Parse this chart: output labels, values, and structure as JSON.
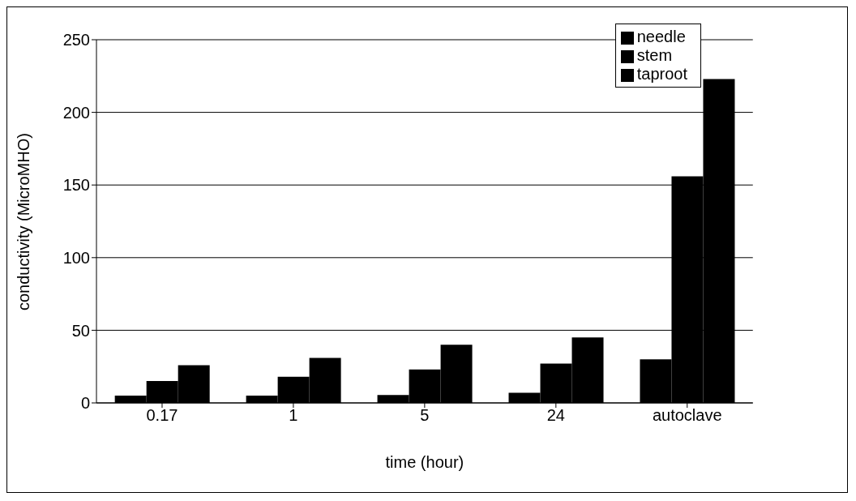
{
  "chart_data": {
    "type": "bar",
    "xlabel": "time (hour)",
    "ylabel": "conductivity (MicroMHO)",
    "categories": [
      "0.17",
      "1",
      "5",
      "24",
      "autoclave"
    ],
    "series": [
      {
        "name": "needle",
        "color": "#000000",
        "values": [
          5,
          5,
          5.5,
          7,
          30
        ]
      },
      {
        "name": "stem",
        "color": "#000000",
        "values": [
          15,
          18,
          23,
          27,
          156
        ]
      },
      {
        "name": "taproot",
        "color": "#000000",
        "values": [
          26,
          31,
          40,
          45,
          223
        ]
      }
    ],
    "ylim": [
      0,
      250
    ],
    "yticks": [
      0,
      50,
      100,
      150,
      200,
      250
    ],
    "grid": "y",
    "legend": "top right"
  }
}
